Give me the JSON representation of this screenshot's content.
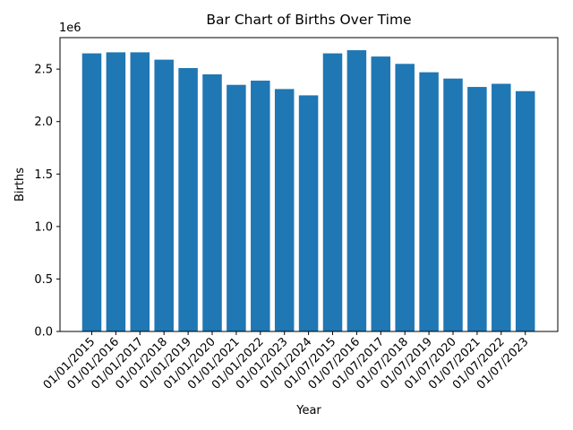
{
  "chart_data": {
    "type": "bar",
    "title": "Bar Chart of Births Over Time",
    "xlabel": "Year",
    "ylabel": "Births",
    "y_offset_label": "1e6",
    "bar_color": "#1f77b4",
    "ylim": [
      0,
      2800000
    ],
    "yticks": [
      0,
      500000,
      1000000,
      1500000,
      2000000,
      2500000
    ],
    "ytick_labels": [
      "0.0",
      "0.5",
      "1.0",
      "1.5",
      "2.0",
      "2.5"
    ],
    "grid": false,
    "categories": [
      "01/01/2015",
      "01/01/2016",
      "01/01/2017",
      "01/01/2018",
      "01/01/2019",
      "01/01/2020",
      "01/01/2021",
      "01/01/2022",
      "01/01/2023",
      "01/01/2024",
      "01/07/2015",
      "01/07/2016",
      "01/07/2017",
      "01/07/2018",
      "01/07/2019",
      "01/07/2020",
      "01/07/2021",
      "01/07/2022",
      "01/07/2023"
    ],
    "values": [
      2650000,
      2660000,
      2660000,
      2590000,
      2510000,
      2450000,
      2350000,
      2390000,
      2310000,
      2250000,
      2650000,
      2680000,
      2620000,
      2550000,
      2470000,
      2410000,
      2330000,
      2360000,
      2290000
    ]
  }
}
